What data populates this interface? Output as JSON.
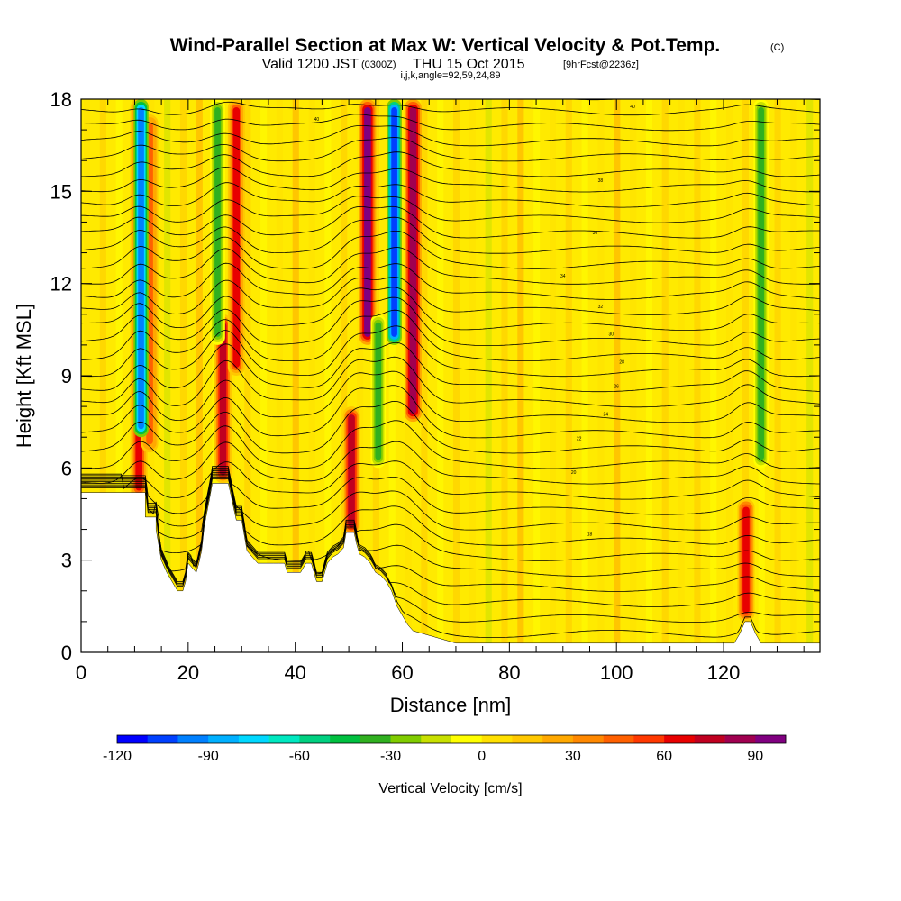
{
  "title": {
    "main": "Wind-Parallel Section at Max W: Vertical Velocity & Pot.Temp.",
    "copyright": "(C)",
    "valid_prefix": "Valid 1200 JST",
    "valid_utc": "(0300Z)",
    "valid_date": "THU 15 Oct 2015",
    "forecast": "[9hrFcst@2236z]",
    "indices": "i,j,k,angle=92,59,24,89"
  },
  "chart_data": {
    "type": "heatmap",
    "xlabel": "Distance [nm]",
    "ylabel": "Height [Kft MSL]",
    "xlim": [
      0,
      138
    ],
    "ylim": [
      0,
      18
    ],
    "x_ticks": [
      0,
      20,
      40,
      60,
      80,
      100,
      120
    ],
    "y_ticks": [
      0,
      3,
      6,
      9,
      12,
      15,
      18
    ],
    "colorbar": {
      "title": "Vertical Velocity [cm/s]",
      "range": [
        -120,
        100
      ],
      "ticks": [
        -120,
        -90,
        -60,
        -30,
        0,
        30,
        60,
        90
      ],
      "colors": [
        "#0000ff",
        "#0040ff",
        "#0080ff",
        "#00b0ff",
        "#00d8ff",
        "#00e8c0",
        "#00d080",
        "#00c040",
        "#30b020",
        "#80cc00",
        "#c8e000",
        "#ffff00",
        "#ffe000",
        "#ffc800",
        "#ffa800",
        "#ff8800",
        "#ff6000",
        "#ff3800",
        "#e80000",
        "#c00020",
        "#a00050",
        "#800080"
      ]
    },
    "terrain_kft": [
      [
        0,
        5.2
      ],
      [
        12,
        5.2
      ],
      [
        12,
        4.4
      ],
      [
        14,
        4.4
      ],
      [
        14,
        4
      ],
      [
        15,
        3
      ],
      [
        16,
        2.6
      ],
      [
        17,
        2.3
      ],
      [
        18,
        2
      ],
      [
        19,
        2
      ],
      [
        19.5,
        2.3
      ],
      [
        20,
        2.9
      ],
      [
        21,
        2.7
      ],
      [
        21.5,
        2.6
      ],
      [
        22,
        2.9
      ],
      [
        22.5,
        3.3
      ],
      [
        23,
        4.1
      ],
      [
        24,
        5
      ],
      [
        24.5,
        5.5
      ],
      [
        27.5,
        5.5
      ],
      [
        28,
        5.1
      ],
      [
        29,
        4.3
      ],
      [
        30,
        4.3
      ],
      [
        30.5,
        3.8
      ],
      [
        31,
        3.3
      ],
      [
        32,
        3.1
      ],
      [
        33,
        2.9
      ],
      [
        36,
        2.9
      ],
      [
        37,
        2.9
      ],
      [
        38,
        2.9
      ],
      [
        38.5,
        2.6
      ],
      [
        41,
        2.6
      ],
      [
        42,
        2.9
      ],
      [
        43,
        2.9
      ],
      [
        43.5,
        2.6
      ],
      [
        44,
        2.3
      ],
      [
        45,
        2.3
      ],
      [
        45.5,
        2.6
      ],
      [
        46,
        2.9
      ],
      [
        47,
        3.1
      ],
      [
        48,
        3.2
      ],
      [
        49,
        3.4
      ],
      [
        49.5,
        3.9
      ],
      [
        51,
        3.9
      ],
      [
        51.5,
        3.5
      ],
      [
        52,
        3.2
      ],
      [
        53,
        3.1
      ],
      [
        54,
        2.9
      ],
      [
        55,
        2.6
      ],
      [
        56,
        2.5
      ],
      [
        57,
        2.3
      ],
      [
        58,
        2
      ],
      [
        59,
        1.5
      ],
      [
        60,
        1.2
      ],
      [
        61,
        0.9
      ],
      [
        62,
        0.7
      ],
      [
        64,
        0.6
      ],
      [
        66,
        0.5
      ],
      [
        70,
        0.3
      ],
      [
        122,
        0.3
      ],
      [
        123,
        0.6
      ],
      [
        124,
        1
      ],
      [
        125,
        1
      ],
      [
        126,
        0.6
      ],
      [
        127,
        0.3
      ],
      [
        138,
        0.3
      ]
    ],
    "updraft_cores": [
      {
        "x": 10.8,
        "w": 55,
        "h0": 5.0,
        "h1": 18,
        "peak_w": 60
      },
      {
        "x": 12.8,
        "w": 40,
        "h0": 6.5,
        "h1": 17.5,
        "peak_w": 40
      },
      {
        "x": 26.5,
        "w": 70,
        "h0": 5.5,
        "h1": 11,
        "peak_w": 70
      },
      {
        "x": 29,
        "w": 60,
        "h0": 9,
        "h1": 18,
        "peak_w": 60
      },
      {
        "x": 50.5,
        "w": 70,
        "h0": 3.8,
        "h1": 8,
        "peak_w": 70
      },
      {
        "x": 53.5,
        "w": 90,
        "h0": 10,
        "h1": 18,
        "peak_w": 90
      },
      {
        "x": 62,
        "w": 80,
        "h0": 7.5,
        "h1": 18,
        "peak_w": 80
      },
      {
        "x": 124.2,
        "w": 65,
        "h0": 1,
        "h1": 5,
        "peak_w": 65
      }
    ],
    "downdraft_cores": [
      {
        "x": 11.2,
        "h0": 7,
        "h1": 18,
        "min_w": -95
      },
      {
        "x": 58.5,
        "h0": 10,
        "h1": 18,
        "min_w": -110
      },
      {
        "x": 55.5,
        "h0": 6,
        "h1": 11,
        "min_w": -40
      },
      {
        "x": 25.5,
        "h0": 10,
        "h1": 18,
        "min_w": -35
      },
      {
        "x": 127,
        "h0": 6,
        "h1": 18,
        "min_w": -35
      }
    ],
    "theta_contours_K": {
      "interval": 1,
      "count": 36
    },
    "contour_labels": [
      "40",
      "40",
      "38",
      "36",
      "34",
      "32",
      "30",
      "28",
      "26",
      "24",
      "22",
      "20",
      "18"
    ]
  }
}
